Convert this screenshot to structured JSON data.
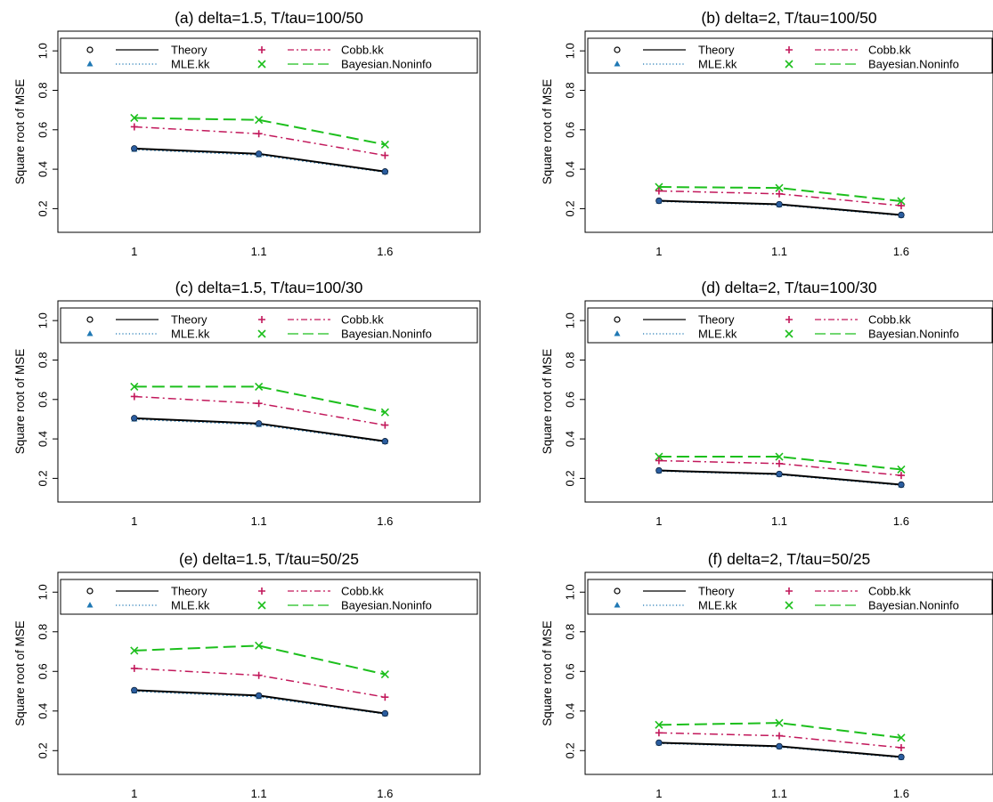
{
  "legend": {
    "theory": "Theory",
    "mle": "MLE.kk",
    "cobb": "Cobb.kk",
    "bayes": "Bayesian.Noninfo"
  },
  "colors": {
    "theory": "#000000",
    "mle": "#1f78b4",
    "cobb": "#c2185b",
    "bayes": "#1cbf1c"
  },
  "chart_data": [
    {
      "type": "line",
      "title": "(a) delta=1.5, T/tau=100/50",
      "ylabel": "Square root of MSE",
      "categories": [
        "1",
        "1.1",
        "1.6"
      ],
      "yticks": [
        "0.2",
        "0.4",
        "0.6",
        "0.8",
        "1.0"
      ],
      "ylim": [
        0.08,
        1.1
      ],
      "legend_position": "top",
      "series": [
        {
          "name": "Theory",
          "values": [
            0.505,
            0.478,
            0.388
          ]
        },
        {
          "name": "MLE.kk",
          "values": [
            0.5,
            0.472,
            0.385
          ]
        },
        {
          "name": "Cobb.kk",
          "values": [
            0.615,
            0.58,
            0.47
          ]
        },
        {
          "name": "Bayesian.Noninfo",
          "values": [
            0.66,
            0.65,
            0.525
          ]
        }
      ]
    },
    {
      "type": "line",
      "title": "(b) delta=2, T/tau=100/50",
      "ylabel": "Square root of MSE",
      "categories": [
        "1",
        "1.1",
        "1.6"
      ],
      "yticks": [
        "0.2",
        "0.4",
        "0.6",
        "0.8",
        "1.0"
      ],
      "ylim": [
        0.08,
        1.1
      ],
      "legend_position": "top",
      "series": [
        {
          "name": "Theory",
          "values": [
            0.24,
            0.222,
            0.168
          ]
        },
        {
          "name": "MLE.kk",
          "values": [
            0.237,
            0.219,
            0.165
          ]
        },
        {
          "name": "Cobb.kk",
          "values": [
            0.29,
            0.275,
            0.215
          ]
        },
        {
          "name": "Bayesian.Noninfo",
          "values": [
            0.31,
            0.305,
            0.238
          ]
        }
      ]
    },
    {
      "type": "line",
      "title": "(c) delta=1.5, T/tau=100/30",
      "ylabel": "Square root of MSE",
      "categories": [
        "1",
        "1.1",
        "1.6"
      ],
      "yticks": [
        "0.2",
        "0.4",
        "0.6",
        "0.8",
        "1.0"
      ],
      "ylim": [
        0.08,
        1.1
      ],
      "legend_position": "top",
      "series": [
        {
          "name": "Theory",
          "values": [
            0.505,
            0.478,
            0.388
          ]
        },
        {
          "name": "MLE.kk",
          "values": [
            0.5,
            0.472,
            0.385
          ]
        },
        {
          "name": "Cobb.kk",
          "values": [
            0.615,
            0.58,
            0.47
          ]
        },
        {
          "name": "Bayesian.Noninfo",
          "values": [
            0.665,
            0.665,
            0.535
          ]
        }
      ]
    },
    {
      "type": "line",
      "title": "(d) delta=2, T/tau=100/30",
      "ylabel": "Square root of MSE",
      "categories": [
        "1",
        "1.1",
        "1.6"
      ],
      "yticks": [
        "0.2",
        "0.4",
        "0.6",
        "0.8",
        "1.0"
      ],
      "ylim": [
        0.08,
        1.1
      ],
      "legend_position": "top",
      "series": [
        {
          "name": "Theory",
          "values": [
            0.24,
            0.222,
            0.168
          ]
        },
        {
          "name": "MLE.kk",
          "values": [
            0.237,
            0.219,
            0.165
          ]
        },
        {
          "name": "Cobb.kk",
          "values": [
            0.29,
            0.275,
            0.215
          ]
        },
        {
          "name": "Bayesian.Noninfo",
          "values": [
            0.31,
            0.31,
            0.245
          ]
        }
      ]
    },
    {
      "type": "line",
      "title": "(e) delta=1.5, T/tau=50/25",
      "ylabel": "Square root of MSE",
      "categories": [
        "1",
        "1.1",
        "1.6"
      ],
      "yticks": [
        "0.2",
        "0.4",
        "0.6",
        "0.8",
        "1.0"
      ],
      "ylim": [
        0.08,
        1.1
      ],
      "legend_position": "top",
      "series": [
        {
          "name": "Theory",
          "values": [
            0.505,
            0.478,
            0.388
          ]
        },
        {
          "name": "MLE.kk",
          "values": [
            0.5,
            0.472,
            0.385
          ]
        },
        {
          "name": "Cobb.kk",
          "values": [
            0.615,
            0.58,
            0.47
          ]
        },
        {
          "name": "Bayesian.Noninfo",
          "values": [
            0.705,
            0.73,
            0.585
          ]
        }
      ]
    },
    {
      "type": "line",
      "title": "(f) delta=2, T/tau=50/25",
      "ylabel": "Square root of MSE",
      "categories": [
        "1",
        "1.1",
        "1.6"
      ],
      "yticks": [
        "0.2",
        "0.4",
        "0.6",
        "0.8",
        "1.0"
      ],
      "ylim": [
        0.08,
        1.1
      ],
      "legend_position": "top",
      "series": [
        {
          "name": "Theory",
          "values": [
            0.24,
            0.222,
            0.168
          ]
        },
        {
          "name": "MLE.kk",
          "values": [
            0.237,
            0.219,
            0.165
          ]
        },
        {
          "name": "Cobb.kk",
          "values": [
            0.29,
            0.275,
            0.215
          ]
        },
        {
          "name": "Bayesian.Noninfo",
          "values": [
            0.33,
            0.34,
            0.265
          ]
        }
      ]
    }
  ]
}
